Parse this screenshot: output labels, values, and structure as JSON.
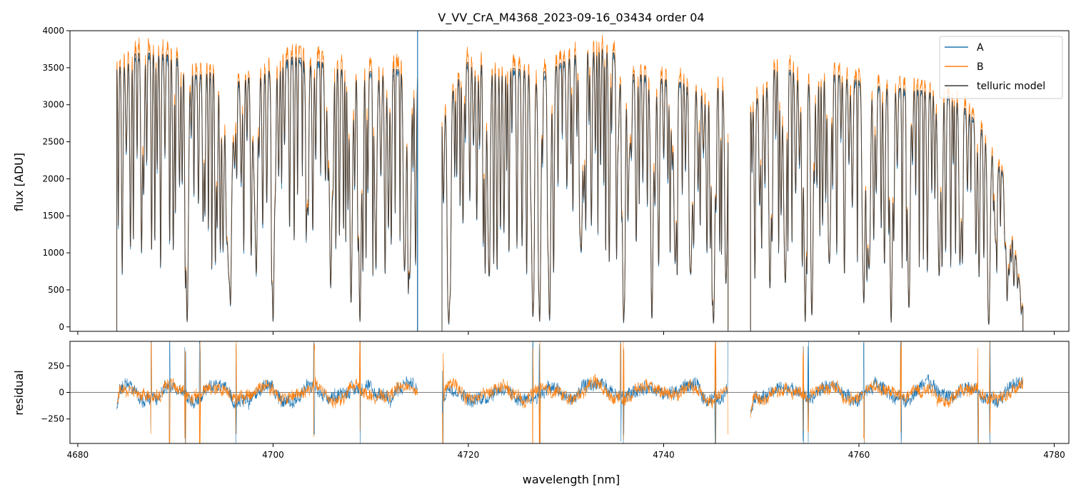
{
  "chart_data": {
    "type": "line",
    "title": "V_VV_CrA_M4368_2023-09-16_03434  order 04",
    "xlabel": "wavelength [nm]",
    "xlim": [
      4679.2,
      4781.5
    ],
    "x_ticks": [
      4680,
      4700,
      4720,
      4740,
      4760,
      4780
    ],
    "x_tick_labels": [
      "4680",
      "4700",
      "4720",
      "4740",
      "4760",
      "4780"
    ],
    "legend_position": "upper right",
    "colors": {
      "A": "#1f77b4",
      "B": "#ff7f0e",
      "telluric": "#3a3a3a"
    },
    "segments": [
      [
        4684.0,
        4714.8
      ],
      [
        4717.3,
        4746.6
      ],
      [
        4748.9,
        4776.8
      ]
    ],
    "panels": [
      {
        "name": "flux",
        "ylabel": "flux [ADU]",
        "ylim": [
          -60,
          4000
        ],
        "y_ticks": [
          0,
          500,
          1000,
          1500,
          2000,
          2500,
          3000,
          3500,
          4000
        ],
        "y_tick_labels": [
          "0",
          "500",
          "1000",
          "1500",
          "2000",
          "2500",
          "3000",
          "3500",
          "4000"
        ],
        "grid": false,
        "series": [
          {
            "name": "A",
            "key": "A"
          },
          {
            "name": "B",
            "key": "B"
          },
          {
            "name": "telluric model",
            "key": "telluric"
          }
        ],
        "continuum": {
          "x": [
            4684.0,
            4686,
            4688,
            4690,
            4692,
            4694,
            4696,
            4698,
            4700,
            4702,
            4704,
            4706,
            4708,
            4710,
            4712,
            4714.8,
            4717.3,
            4720,
            4724,
            4728,
            4730,
            4732,
            4734,
            4735,
            4736,
            4738,
            4740,
            4742,
            4744,
            4746.6,
            4748.9,
            4751,
            4754,
            4758,
            4762,
            4766,
            4770,
            4773,
            4775,
            4776.8
          ],
          "y": [
            3500,
            3700,
            3700,
            3650,
            3400,
            3450,
            3300,
            3400,
            3500,
            3650,
            3600,
            3550,
            3400,
            3450,
            3500,
            3400,
            2900,
            3600,
            3500,
            3450,
            3600,
            3750,
            3750,
            3700,
            3450,
            3400,
            3350,
            3300,
            3200,
            3300,
            2900,
            3500,
            3450,
            3400,
            3250,
            3200,
            3100,
            2600,
            2000,
            250
          ]
        },
        "absorption_lines": [
          [
            4691.2,
            0.97,
            0.13
          ],
          [
            4695.5,
            0.8,
            0.25
          ],
          [
            4698.2,
            0.55,
            0.2
          ],
          [
            4700.0,
            0.98,
            0.13
          ],
          [
            4703.5,
            0.55,
            0.13
          ],
          [
            4705.9,
            0.85,
            0.13
          ],
          [
            4708.0,
            0.75,
            0.13
          ],
          [
            4708.9,
            0.98,
            0.13
          ],
          [
            4710.5,
            0.62,
            0.13
          ],
          [
            4713.5,
            0.7,
            0.13
          ],
          [
            4714.0,
            0.8,
            0.13
          ],
          [
            4718.0,
            0.98,
            0.13
          ],
          [
            4722.1,
            0.78,
            0.13
          ],
          [
            4726.6,
            0.95,
            0.13
          ],
          [
            4727.3,
            0.98,
            0.13
          ],
          [
            4728.3,
            0.9,
            0.13
          ],
          [
            4731.5,
            0.65,
            0.13
          ],
          [
            4735.3,
            0.35,
            0.13
          ],
          [
            4735.9,
            0.98,
            0.13
          ],
          [
            4736.5,
            0.3,
            0.13
          ],
          [
            4738.8,
            0.85,
            0.13
          ],
          [
            4741.2,
            0.7,
            0.13
          ],
          [
            4742.8,
            0.75,
            0.13
          ],
          [
            4745.1,
            0.98,
            0.13
          ],
          [
            4746.4,
            0.8,
            0.13
          ],
          [
            4750.9,
            0.75,
            0.13
          ],
          [
            4752.4,
            0.7,
            0.13
          ],
          [
            4754.5,
            0.98,
            0.13
          ],
          [
            4755.2,
            0.8,
            0.13
          ],
          [
            4757.0,
            0.7,
            0.13
          ],
          [
            4760.5,
            0.9,
            0.13
          ],
          [
            4761.0,
            0.7,
            0.13
          ],
          [
            4763.3,
            0.98,
            0.13
          ],
          [
            4765.1,
            0.85,
            0.13
          ],
          [
            4768.2,
            0.7,
            0.13
          ],
          [
            4770.4,
            0.55,
            0.13
          ],
          [
            4773.3,
            0.97,
            0.13
          ],
          [
            4774.0,
            0.5,
            0.13
          ],
          [
            4775.2,
            0.6,
            0.13
          ]
        ]
      },
      {
        "name": "residual",
        "ylabel": "residual",
        "ylim": [
          -480,
          480
        ],
        "y_ticks": [
          -250,
          0,
          250
        ],
        "y_tick_labels": [
          "−250",
          "0",
          "250"
        ],
        "zero_line": true,
        "grid": false,
        "spikes": [
          4687.5,
          4689.4,
          4691.0,
          4692.5,
          4696.2,
          4704.2,
          4708.9,
          4717.4,
          4726.6,
          4727.3,
          4735.6,
          4735.9,
          4745.3,
          4746.6,
          4754.3,
          4754.8,
          4760.5,
          4764.3,
          4772.2,
          4773.4
        ]
      }
    ]
  }
}
